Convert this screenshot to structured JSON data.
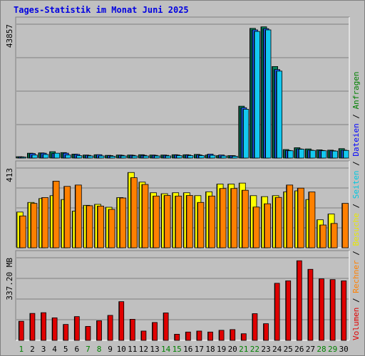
{
  "title": "Tages-Statistik im Monat Juni 2025",
  "chart_data": [
    {
      "type": "bar",
      "panel": "hits",
      "categories": [
        "1",
        "2",
        "3",
        "4",
        "5",
        "6",
        "7",
        "8",
        "9",
        "10",
        "11",
        "12",
        "13",
        "14",
        "15",
        "16",
        "17",
        "18",
        "19",
        "20",
        "21",
        "22",
        "23",
        "24",
        "25",
        "26",
        "27",
        "28",
        "29",
        "30"
      ],
      "ymax_label": "43857",
      "ylim": [
        0,
        43857
      ],
      "grid": true,
      "series": [
        {
          "name": "Anfragen",
          "color": "#00805a",
          "values": [
            450,
            1600,
            1700,
            2100,
            1800,
            1300,
            1000,
            1100,
            900,
            1000,
            1000,
            1100,
            1000,
            1000,
            1100,
            1100,
            1200,
            1000,
            800,
            800,
            17000,
            42500,
            43000,
            30000,
            2800,
            3400,
            3000,
            2700,
            2600,
            3100
          ]
        },
        {
          "name": "Dateien",
          "color": "#1a63ff",
          "values": [
            400,
            1500,
            1600,
            1500,
            1600,
            1200,
            900,
            1100,
            800,
            900,
            900,
            900,
            900,
            900,
            1000,
            1000,
            1000,
            1300,
            1000,
            800,
            16500,
            42000,
            42400,
            29000,
            2500,
            3000,
            2600,
            2500,
            2400,
            2600
          ]
        },
        {
          "name": "Seiten",
          "color": "#14c8f0",
          "values": [
            300,
            1000,
            1200,
            1600,
            1000,
            800,
            700,
            700,
            600,
            700,
            700,
            700,
            700,
            700,
            800,
            800,
            800,
            900,
            700,
            600,
            16000,
            41500,
            42000,
            28500,
            2400,
            2900,
            2500,
            2400,
            2300,
            2500
          ]
        }
      ]
    },
    {
      "type": "bar",
      "panel": "visits",
      "categories": [
        "1",
        "2",
        "3",
        "4",
        "5",
        "6",
        "7",
        "8",
        "9",
        "10",
        "11",
        "12",
        "13",
        "14",
        "15",
        "16",
        "17",
        "18",
        "19",
        "20",
        "21",
        "22",
        "23",
        "24",
        "25",
        "26",
        "27",
        "28",
        "29",
        "30"
      ],
      "ymax_label": "413",
      "ylim": [
        0,
        413
      ],
      "grid": true,
      "series": [
        {
          "name": "Besuche",
          "color": "#ffff00",
          "values": [
            185,
            235,
            255,
            270,
            250,
            190,
            220,
            225,
            210,
            260,
            390,
            340,
            285,
            280,
            285,
            285,
            270,
            290,
            330,
            330,
            335,
            270,
            265,
            270,
            290,
            295,
            250,
            145,
            175,
            0
          ]
        },
        {
          "name": "Rechner",
          "color": "#ff8000",
          "values": [
            165,
            230,
            260,
            345,
            318,
            325,
            218,
            216,
            199,
            258,
            363,
            328,
            268,
            271,
            268,
            271,
            235,
            268,
            307,
            307,
            298,
            211,
            228,
            261,
            325,
            309,
            289,
            118,
            126,
            230
          ]
        }
      ]
    },
    {
      "type": "bar",
      "panel": "volume",
      "categories": [
        "1",
        "2",
        "3",
        "4",
        "5",
        "6",
        "7",
        "8",
        "9",
        "10",
        "11",
        "12",
        "13",
        "14",
        "15",
        "16",
        "17",
        "18",
        "19",
        "20",
        "21",
        "22",
        "23",
        "24",
        "25",
        "26",
        "27",
        "28",
        "29",
        "30"
      ],
      "ymax_label": "337.20 MB",
      "ylim": [
        0,
        337.2
      ],
      "grid": true,
      "series": [
        {
          "name": "Volumen",
          "color": "#e00000",
          "values": [
            78,
            110,
            113,
            92,
            65,
            97,
            57,
            80,
            102,
            158,
            86,
            38,
            73,
            112,
            25,
            34,
            38,
            34,
            41,
            44,
            27,
            109,
            68,
            233,
            243,
            325,
            290,
            251,
            248,
            243
          ]
        }
      ]
    }
  ],
  "legend_right": [
    {
      "label": "Volumen",
      "color": "#e00000"
    },
    {
      "label": "Rechner",
      "color": "#ff8000"
    },
    {
      "label": "Besuche",
      "color": "#e8e800"
    },
    {
      "label": "Seiten",
      "color": "#00c8e0"
    },
    {
      "label": "Dateien",
      "color": "#0000ff"
    },
    {
      "label": "Anfragen",
      "color": "#008000"
    }
  ],
  "legend_separator": " / ",
  "weekend_days": [
    "1",
    "7",
    "8",
    "14",
    "15",
    "21",
    "22",
    "28",
    "29"
  ],
  "colors": {
    "weekday_tick": "#000000",
    "weekend_tick": "#008000"
  }
}
